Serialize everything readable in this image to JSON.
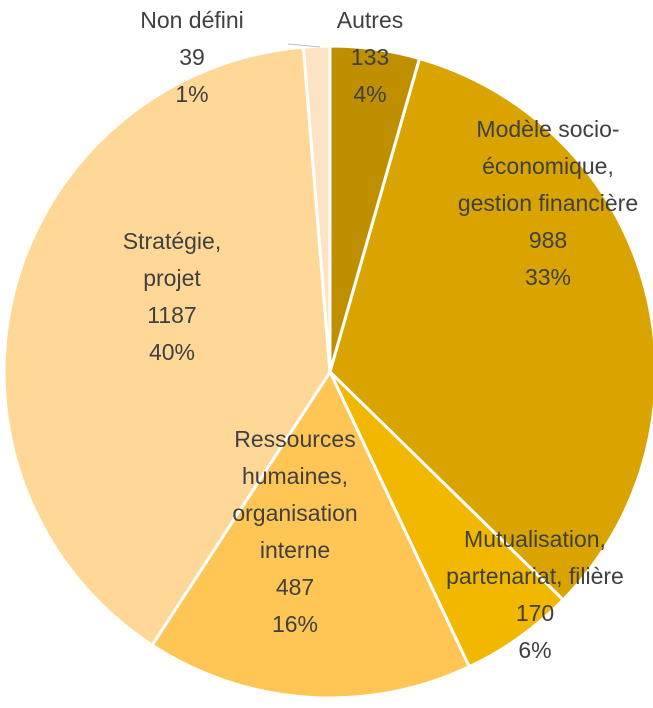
{
  "chart_data": {
    "type": "pie",
    "categories": [
      "Autres",
      "Modèle socio-économique, gestion financière",
      "Mutualisation, partenariat, filière",
      "Ressources humaines, organisation interne",
      "Stratégie, projet",
      "Non défini"
    ],
    "values": [
      133,
      988,
      170,
      487,
      1187,
      39
    ],
    "percent_labels": [
      "4%",
      "33%",
      "6%",
      "16%",
      "40%",
      "1%"
    ],
    "colors": [
      "#BF8F00",
      "#D9A400",
      "#F2B800",
      "#FFC655",
      "#FFD898",
      "#FCE3C4"
    ]
  }
}
